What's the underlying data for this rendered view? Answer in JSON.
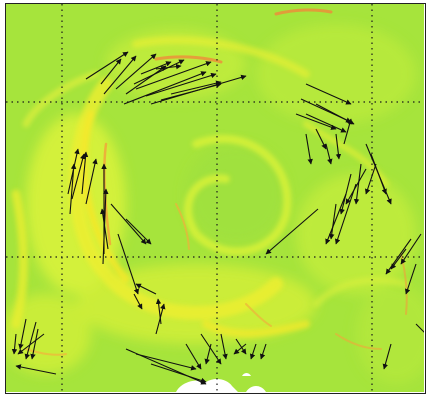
{
  "map": {
    "description_colors": {
      "base": "#a8e63a",
      "light": "#d6f23a",
      "yellow": "#f2ec2a",
      "orange": "#f2a63a",
      "cloud": "#ffffff",
      "arrow": "#111111",
      "grid": "#222222"
    },
    "grid": {
      "style": "dotted",
      "vertical_lines": 4,
      "horizontal_lines": 2
    },
    "vectors": {
      "color": "#111111",
      "icon": "arrow-icon"
    }
  }
}
